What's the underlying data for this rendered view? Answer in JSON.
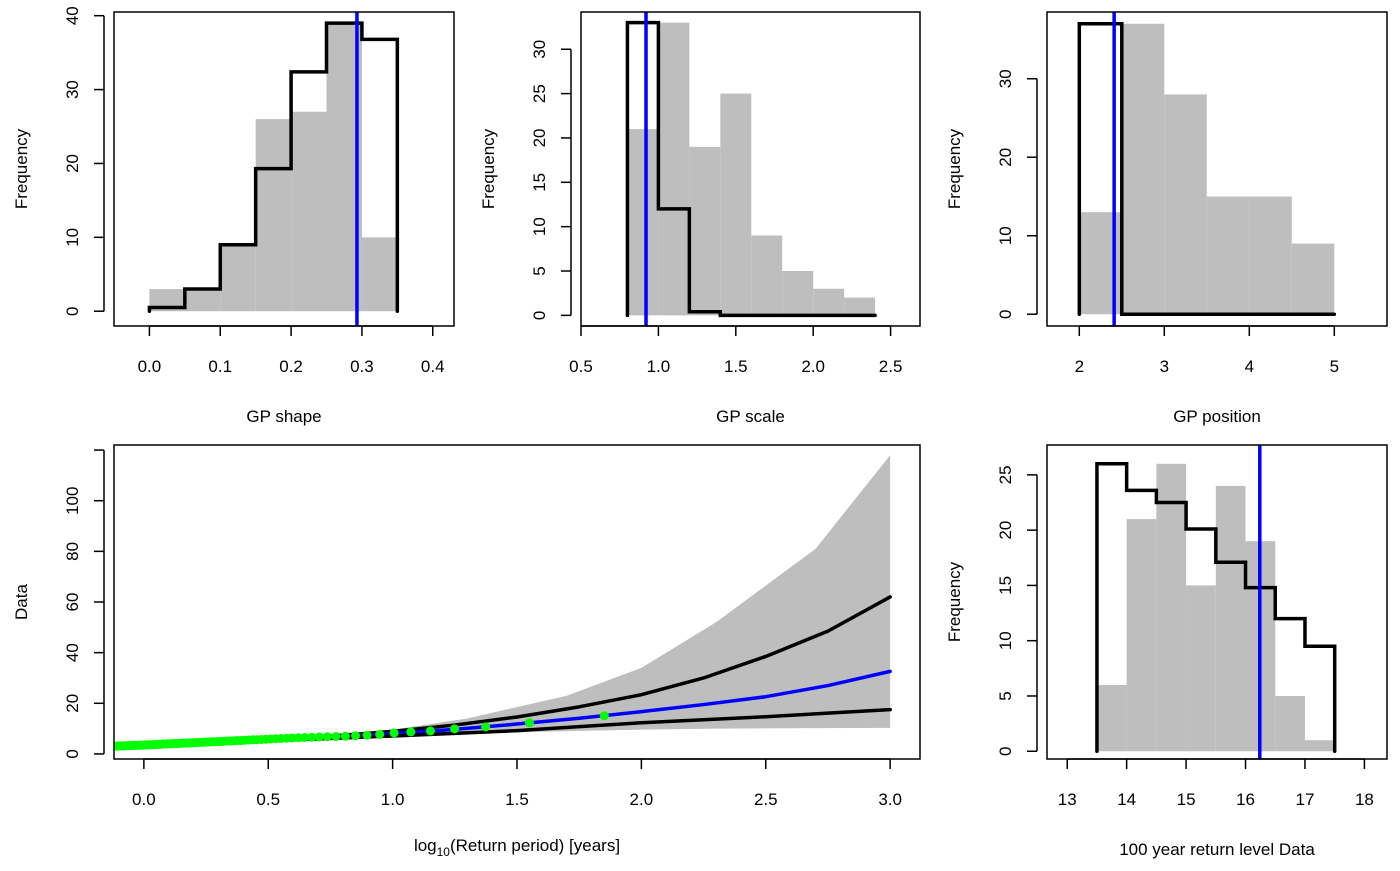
{
  "colors": {
    "bars": "#bebebe",
    "step": "#000000",
    "reference": "#0000ff",
    "points": "#00ff00",
    "band": "#bebebe"
  },
  "chart_data": [
    {
      "id": "gp-shape",
      "type": "bar",
      "title": "",
      "xlabel": "GP shape",
      "ylabel": "Frequency",
      "xlim": [
        -0.05,
        0.43
      ],
      "ylim": [
        -2,
        40.5
      ],
      "xticks": [
        0.0,
        0.1,
        0.2,
        0.3,
        0.4
      ],
      "xtick_labels": [
        "0.0",
        "0.1",
        "0.2",
        "0.3",
        "0.4"
      ],
      "yticks": [
        0,
        10,
        20,
        30,
        40
      ],
      "ytick_labels": [
        "0",
        "10",
        "20",
        "30",
        "40"
      ],
      "bins": [
        0.0,
        0.05,
        0.1,
        0.15,
        0.2,
        0.25,
        0.3,
        0.35
      ],
      "values": [
        3,
        3,
        9,
        26,
        27,
        39,
        10
      ],
      "step_values": [
        0.5,
        3,
        9,
        19.3,
        32.4,
        39,
        36.8
      ],
      "reference_x": 0.293
    },
    {
      "id": "gp-scale",
      "type": "bar",
      "title": "",
      "xlabel": "GP scale",
      "ylabel": "Frequency",
      "xlim": [
        0.5,
        2.69
      ],
      "ylim": [
        -1.2,
        34.2
      ],
      "xticks": [
        0.5,
        1.0,
        1.5,
        2.0,
        2.5
      ],
      "xtick_labels": [
        "0.5",
        "1.0",
        "1.5",
        "2.0",
        "2.5"
      ],
      "yticks": [
        0,
        5,
        10,
        15,
        20,
        25,
        30
      ],
      "ytick_labels": [
        "0",
        "5",
        "10",
        "15",
        "20",
        "25",
        "30"
      ],
      "bins": [
        0.8,
        1.0,
        1.2,
        1.4,
        1.6,
        1.8,
        2.0,
        2.2,
        2.4
      ],
      "values": [
        21,
        33,
        19,
        25,
        9,
        5,
        3,
        2
      ],
      "step_values": [
        33,
        12,
        0.4,
        0,
        0,
        0,
        0,
        0
      ],
      "reference_x": 0.92
    },
    {
      "id": "gp-position",
      "type": "bar",
      "title": "",
      "xlabel": "GP position",
      "ylabel": "Frequency",
      "xlim": [
        1.62,
        5.62
      ],
      "ylim": [
        -1.5,
        38.5
      ],
      "xticks": [
        2,
        3,
        4,
        5
      ],
      "xtick_labels": [
        "2",
        "3",
        "4",
        "5"
      ],
      "yticks": [
        0,
        10,
        20,
        30
      ],
      "ytick_labels": [
        "0",
        "10",
        "20",
        "30"
      ],
      "bins": [
        2.0,
        2.5,
        3.0,
        3.5,
        4.0,
        4.5,
        5.0
      ],
      "values": [
        13,
        37,
        28,
        15,
        15,
        9
      ],
      "step_values": [
        37,
        0,
        0,
        0,
        0,
        0
      ],
      "reference_x": 2.41
    },
    {
      "id": "return-level",
      "type": "line",
      "title": "",
      "xlabel_prefix": "log",
      "xlabel_sub": "10",
      "xlabel_suffix": "(Return period) [years]",
      "ylabel": "Data",
      "xlim": [
        -0.12,
        3.12
      ],
      "ylim": [
        -2,
        122
      ],
      "xticks": [
        0.0,
        0.5,
        1.0,
        1.5,
        2.0,
        2.5,
        3.0
      ],
      "xtick_labels": [
        "0.0",
        "0.5",
        "1.0",
        "1.5",
        "2.0",
        "2.5",
        "3.0"
      ],
      "yticks": [
        0,
        20,
        40,
        60,
        80,
        100,
        120
      ],
      "ytick_labels": [
        "0",
        "20",
        "40",
        "60",
        "80",
        "100",
        ""
      ],
      "band": {
        "x": [
          -0.12,
          0.5,
          1.0,
          1.3,
          1.7,
          2.0,
          2.3,
          2.7,
          3.0
        ],
        "upper": [
          3.4,
          6.2,
          9.6,
          14,
          23,
          34,
          52,
          81,
          118
        ],
        "lower": [
          3.0,
          5.2,
          7.2,
          8.0,
          9.0,
          9.6,
          10.0,
          10.2,
          10.3
        ]
      },
      "series": [
        {
          "name": "upper-bound",
          "color": "#000000",
          "x": [
            -0.12,
            0.25,
            0.5,
            0.75,
            1.0,
            1.25,
            1.5,
            1.75,
            2.0,
            2.25,
            2.5,
            2.75,
            3.0
          ],
          "y": [
            3.3,
            4.5,
            5.6,
            7.0,
            8.9,
            11.4,
            14.6,
            18.6,
            23.4,
            30.0,
            38.5,
            48.5,
            62.0
          ]
        },
        {
          "name": "fitted",
          "color": "#0000ff",
          "x": [
            -0.12,
            0.25,
            0.5,
            0.75,
            1.0,
            1.25,
            1.5,
            1.75,
            2.0,
            2.25,
            2.5,
            2.75,
            3.0
          ],
          "y": [
            3.2,
            4.4,
            5.4,
            6.6,
            8.0,
            9.7,
            11.8,
            14.1,
            16.7,
            19.5,
            22.6,
            27.0,
            32.6
          ]
        },
        {
          "name": "lower-bound",
          "color": "#000000",
          "x": [
            -0.12,
            0.25,
            0.5,
            0.75,
            1.0,
            1.25,
            1.5,
            1.75,
            2.0,
            2.25,
            2.5,
            2.75,
            3.0
          ],
          "y": [
            3.1,
            4.3,
            5.2,
            6.1,
            7.1,
            8.1,
            9.2,
            10.8,
            12.3,
            13.5,
            14.7,
            16.1,
            17.5
          ]
        }
      ],
      "points": {
        "x": [
          1.851,
          1.55,
          1.374,
          1.249,
          1.152,
          1.073,
          1.006,
          0.948,
          0.897,
          0.851,
          0.81,
          0.772,
          0.737,
          0.705,
          0.675,
          0.647,
          0.621,
          0.596,
          0.573,
          0.551,
          0.53,
          0.51,
          0.491,
          0.472,
          0.455,
          0.438,
          0.422,
          0.406,
          0.391,
          0.376,
          0.362,
          0.348,
          0.335,
          0.322,
          0.309,
          0.297,
          0.285,
          0.274,
          0.262,
          0.251,
          0.241,
          0.23,
          0.22,
          0.21,
          0.2,
          0.191,
          0.181,
          0.172,
          0.163,
          0.154,
          0.146,
          0.137,
          0.129,
          0.121,
          0.113,
          0.105,
          0.097,
          0.09,
          0.082,
          0.075,
          0.068,
          0.061,
          0.054,
          0.047,
          0.04,
          0.033,
          0.027,
          0.02,
          0.014,
          0.006,
          0.0,
          -0.006,
          -0.012,
          -0.018,
          -0.024,
          -0.03,
          -0.036,
          -0.042,
          -0.048,
          -0.054,
          -0.059,
          -0.065,
          -0.071,
          -0.076,
          -0.082,
          -0.087,
          -0.093,
          -0.098,
          -0.103,
          -0.108,
          -0.113,
          -0.118
        ],
        "y": [
          15.1,
          12.3,
          10.7,
          9.9,
          9.1,
          8.7,
          8.3,
          7.7,
          7.4,
          7.2,
          7.0,
          6.9,
          6.8,
          6.7,
          6.6,
          6.5,
          6.4,
          6.3,
          6.2,
          6.1,
          6.0,
          5.9,
          5.8,
          5.7,
          5.6,
          5.6,
          5.5,
          5.4,
          5.3,
          5.3,
          5.2,
          5.1,
          5.1,
          5.0,
          4.9,
          4.9,
          4.8,
          4.8,
          4.7,
          4.7,
          4.6,
          4.6,
          4.5,
          4.5,
          4.4,
          4.4,
          4.3,
          4.3,
          4.3,
          4.2,
          4.2,
          4.1,
          4.1,
          4.1,
          4.0,
          4.0,
          4.0,
          3.9,
          3.9,
          3.9,
          3.8,
          3.8,
          3.8,
          3.7,
          3.7,
          3.7,
          3.6,
          3.6,
          3.6,
          3.6,
          3.5,
          3.5,
          3.5,
          3.5,
          3.4,
          3.4,
          3.4,
          3.4,
          3.3,
          3.3,
          3.3,
          3.3,
          3.3,
          3.2,
          3.2,
          3.2,
          3.2,
          3.2,
          3.1,
          3.1,
          3.1,
          3.1
        ]
      }
    },
    {
      "id": "return-level-100",
      "type": "bar",
      "title": "",
      "xlabel": "100 year return level Data",
      "ylabel": "Frequency",
      "xlim": [
        12.66,
        18.38
      ],
      "ylim": [
        -0.7,
        27.7
      ],
      "xticks": [
        13,
        14,
        15,
        16,
        17,
        18
      ],
      "xtick_labels": [
        "13",
        "14",
        "15",
        "16",
        "17",
        "18"
      ],
      "yticks": [
        0,
        5,
        10,
        15,
        20,
        25
      ],
      "ytick_labels": [
        "0",
        "5",
        "10",
        "15",
        "20",
        "25"
      ],
      "bins": [
        13.5,
        14.0,
        14.5,
        15.0,
        15.5,
        16.0,
        16.5,
        17.0,
        17.5
      ],
      "values": [
        6,
        21,
        26,
        15,
        24,
        19,
        5,
        1
      ],
      "step_values": [
        26,
        23.6,
        22.5,
        20.1,
        17.1,
        14.8,
        12.0,
        9.5
      ],
      "reference_x": 16.24
    }
  ]
}
